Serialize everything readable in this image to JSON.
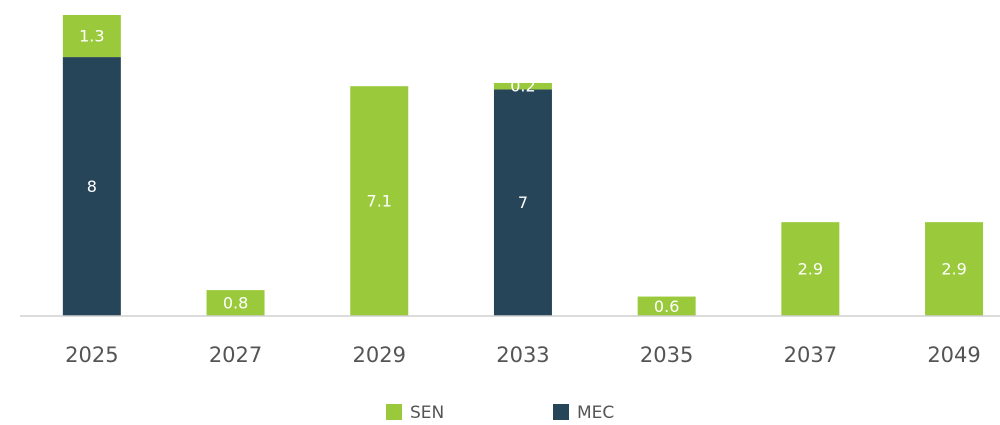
{
  "chart_data": {
    "type": "stacked_bar",
    "categories": [
      "2025",
      "2027",
      "2029",
      "2033",
      "2035",
      "2037",
      "2049"
    ],
    "series": [
      {
        "name": "MEC",
        "color": "#264558",
        "values": [
          8,
          0,
          0,
          7,
          0,
          0,
          0
        ]
      },
      {
        "name": "SEN",
        "color": "#9aca3c",
        "values": [
          1.3,
          0.8,
          7.1,
          0.2,
          0.6,
          2.9,
          2.9
        ]
      }
    ],
    "ylim": [
      0,
      9.3
    ],
    "legend_order": [
      "SEN",
      "MEC"
    ],
    "legend": "bottom"
  }
}
